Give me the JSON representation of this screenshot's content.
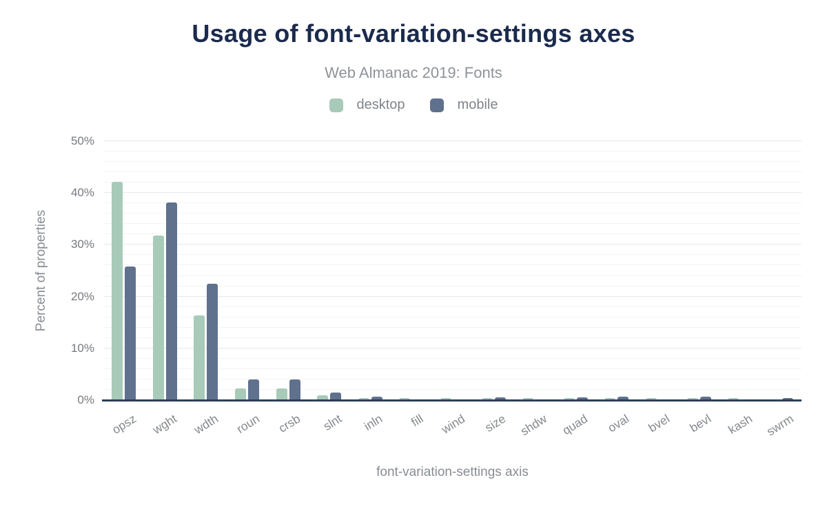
{
  "page": {
    "background": "#ffffff"
  },
  "colors": {
    "title": "#1b2b4d",
    "subtitle": "#8e9399",
    "axis_line": "#2e3d58",
    "tick_label": "#76797e",
    "axis_title": "#888d93",
    "desktop": "#a8cab9",
    "mobile": "#5f718d"
  },
  "chart_data": {
    "type": "bar",
    "title": "Usage of font-variation-settings axes",
    "subtitle": "Web Almanac 2019: Fonts",
    "xlabel": "font-variation-settings axis",
    "ylabel": "Percent of properties",
    "legend_position": "top",
    "grid": "horizontal",
    "categories": [
      "opsz",
      "wght",
      "wdth",
      "roun",
      "crsb",
      "slnt",
      "inln",
      "fill",
      "wind",
      "size",
      "shdw",
      "quad",
      "oval",
      "bvel",
      "bevl",
      "kash",
      "swrm"
    ],
    "series": [
      {
        "name": "desktop",
        "color": "#a8cab9",
        "values": [
          42.2,
          31.8,
          16.4,
          2.2,
          2.2,
          0.9,
          0.4,
          0.4,
          0.4,
          0.4,
          0.4,
          0.4,
          0.4,
          0.4,
          0.4,
          0.4,
          0.1
        ]
      },
      {
        "name": "mobile",
        "color": "#5f718d",
        "values": [
          25.8,
          38.2,
          22.5,
          4.0,
          4.0,
          1.4,
          0.7,
          0,
          0,
          0.6,
          0,
          0.6,
          0.7,
          0,
          0.7,
          0,
          0.4
        ]
      }
    ],
    "ylim": [
      0,
      50
    ],
    "y_ticks": [
      "0%",
      "10%",
      "20%",
      "30%",
      "40%",
      "50%"
    ],
    "y_tick_values": [
      0,
      10,
      20,
      30,
      40,
      50
    ],
    "minor_step": 2,
    "major_step": 10
  }
}
